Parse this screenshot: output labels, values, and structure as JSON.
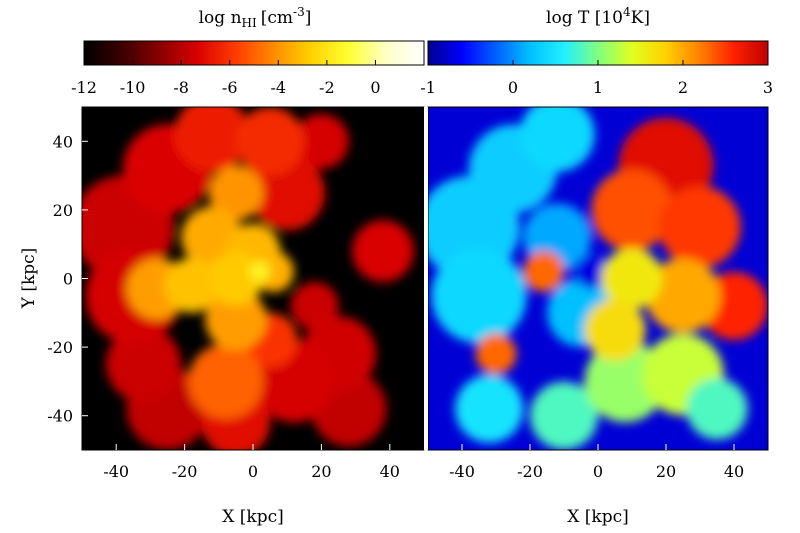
{
  "chart_data": [
    {
      "type": "heatmap",
      "panel": "left",
      "quantity": "neutral hydrogen density",
      "colorbar": {
        "title_main": "log n",
        "title_sub": "HI",
        "title_units_pre": "[cm",
        "title_units_exp": "-3",
        "title_units_post": "]",
        "range": [
          -12,
          2
        ],
        "ticks": [
          -12,
          -10,
          -8,
          -6,
          -4,
          -2,
          0
        ],
        "tick_labels": [
          "-12",
          "-10",
          "-8",
          "-6",
          "-4",
          "-2",
          "0"
        ],
        "colormap": [
          "#000000",
          "#3a0000",
          "#8a0000",
          "#d80000",
          "#ff3a00",
          "#ff8a00",
          "#ffd000",
          "#ffff30",
          "#ffffc8",
          "#ffffff"
        ]
      },
      "xlabel": "X [kpc]",
      "ylabel": "Y [kpc]",
      "xlim": [
        -50,
        50
      ],
      "ylim": [
        -50,
        50
      ],
      "x_ticks": [
        -40,
        -20,
        0,
        20,
        40
      ],
      "x_tick_labels": [
        "-40",
        "-20",
        "0",
        "20",
        "40"
      ],
      "y_ticks": [
        40,
        20,
        0,
        -20,
        -40
      ],
      "y_tick_labels": [
        "40",
        "20",
        "0",
        "-20",
        "-40"
      ],
      "background_value": -12,
      "blobs": [
        {
          "x": -38,
          "y": 15,
          "r": 15,
          "v": -7.6
        },
        {
          "x": -35,
          "y": -5,
          "r": 14,
          "v": -7.4
        },
        {
          "x": -25,
          "y": 32,
          "r": 13,
          "v": -7.2
        },
        {
          "x": -12,
          "y": 42,
          "r": 11,
          "v": -6.5
        },
        {
          "x": 5,
          "y": 40,
          "r": 10,
          "v": -6.2
        },
        {
          "x": 10,
          "y": 25,
          "r": 11,
          "v": -7.0
        },
        {
          "x": 20,
          "y": 40,
          "r": 8,
          "v": -7.4
        },
        {
          "x": -5,
          "y": 25,
          "r": 8,
          "v": -4.0
        },
        {
          "x": -12,
          "y": 12,
          "r": 9,
          "v": -3.5
        },
        {
          "x": 0,
          "y": 8,
          "r": 8,
          "v": -3.2
        },
        {
          "x": -28,
          "y": -3,
          "r": 9,
          "v": -3.8
        },
        {
          "x": -18,
          "y": -2,
          "r": 8,
          "v": -3.0
        },
        {
          "x": -5,
          "y": 0,
          "r": 8,
          "v": -2.8
        },
        {
          "x": 6,
          "y": 2,
          "r": 6,
          "v": -3.4
        },
        {
          "x": -5,
          "y": -12,
          "r": 9,
          "v": -3.8
        },
        {
          "x": -32,
          "y": -25,
          "r": 11,
          "v": -7.6
        },
        {
          "x": -25,
          "y": -38,
          "r": 12,
          "v": -7.8
        },
        {
          "x": -8,
          "y": -30,
          "r": 11,
          "v": -5.0
        },
        {
          "x": -5,
          "y": -42,
          "r": 10,
          "v": -7.0
        },
        {
          "x": 12,
          "y": -30,
          "r": 12,
          "v": -7.4
        },
        {
          "x": 25,
          "y": -22,
          "r": 11,
          "v": -7.5
        },
        {
          "x": 28,
          "y": -38,
          "r": 11,
          "v": -7.8
        },
        {
          "x": 18,
          "y": -8,
          "r": 7,
          "v": -7.6
        },
        {
          "x": 5,
          "y": -18,
          "r": 8,
          "v": -6.0
        },
        {
          "x": 38,
          "y": 8,
          "r": 9,
          "v": -7.3
        },
        {
          "x": 2,
          "y": 2,
          "r": 3,
          "v": -1.5
        }
      ]
    },
    {
      "type": "heatmap",
      "panel": "right",
      "quantity": "temperature",
      "colorbar": {
        "title_pre": "log T [10",
        "title_exp": "4",
        "title_post": "K]",
        "range": [
          -1,
          3
        ],
        "ticks": [
          -1,
          0,
          1,
          2,
          3
        ],
        "tick_labels": [
          "-1",
          "0",
          "1",
          "2",
          "3"
        ],
        "colormap": [
          "#000090",
          "#0000ff",
          "#0060ff",
          "#00c0ff",
          "#20f0ff",
          "#80ff80",
          "#e0ff20",
          "#ffd000",
          "#ff8000",
          "#ff2000",
          "#c00000"
        ]
      },
      "xlabel": "X [kpc]",
      "xlim": [
        -50,
        50
      ],
      "ylim": [
        -50,
        50
      ],
      "x_ticks": [
        -40,
        -20,
        0,
        20,
        40
      ],
      "x_tick_labels": [
        "-40",
        "-20",
        "0",
        "20",
        "40"
      ],
      "background_value": -0.75,
      "blobs": [
        {
          "x": -38,
          "y": 15,
          "r": 15,
          "v": 0.3
        },
        {
          "x": -35,
          "y": -5,
          "r": 14,
          "v": 0.4
        },
        {
          "x": -25,
          "y": 32,
          "r": 13,
          "v": 0.3
        },
        {
          "x": -12,
          "y": 42,
          "r": 11,
          "v": 0.4
        },
        {
          "x": -12,
          "y": 12,
          "r": 10,
          "v": 0.1
        },
        {
          "x": -5,
          "y": -10,
          "r": 10,
          "v": 0.2
        },
        {
          "x": -2,
          "y": 2,
          "r": 5,
          "v": -0.7
        },
        {
          "x": -16,
          "y": 2,
          "r": 6,
          "v": 2.3
        },
        {
          "x": -30,
          "y": -22,
          "r": 6,
          "v": 2.3
        },
        {
          "x": -32,
          "y": -38,
          "r": 10,
          "v": 0.5
        },
        {
          "x": -10,
          "y": -40,
          "r": 10,
          "v": 0.8
        },
        {
          "x": 8,
          "y": -30,
          "r": 12,
          "v": 1.1
        },
        {
          "x": 25,
          "y": -28,
          "r": 12,
          "v": 1.3
        },
        {
          "x": 35,
          "y": -38,
          "r": 9,
          "v": 0.8
        },
        {
          "x": 20,
          "y": 33,
          "r": 14,
          "v": 2.8
        },
        {
          "x": 10,
          "y": 20,
          "r": 12,
          "v": 2.4
        },
        {
          "x": 30,
          "y": 15,
          "r": 12,
          "v": 2.5
        },
        {
          "x": 40,
          "y": -8,
          "r": 10,
          "v": 2.6
        },
        {
          "x": 25,
          "y": -5,
          "r": 11,
          "v": 2.0
        },
        {
          "x": 10,
          "y": 0,
          "r": 9,
          "v": 1.6
        },
        {
          "x": 5,
          "y": -15,
          "r": 9,
          "v": 1.7
        }
      ]
    }
  ]
}
